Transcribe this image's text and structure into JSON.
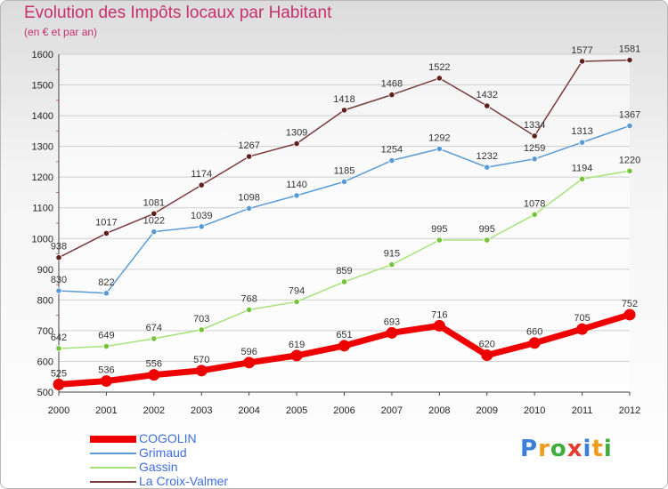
{
  "title": "Evolution des Impôts locaux par Habitant",
  "subtitle": "(en € et par an)",
  "brand": {
    "text": "Proxiti",
    "letters": [
      {
        "ch": "P",
        "color": "#3b7fd9"
      },
      {
        "ch": "r",
        "color": "#f29a1c"
      },
      {
        "ch": "o",
        "color": "#3fae3f"
      },
      {
        "ch": "x",
        "color": "#e23c2c"
      },
      {
        "ch": "i",
        "color": "#3b7fd9"
      },
      {
        "ch": "t",
        "color": "#f29a1c"
      },
      {
        "ch": "i",
        "color": "#3fae3f"
      }
    ]
  },
  "chart_data": {
    "type": "line",
    "title": "Evolution des Impôts locaux par Habitant",
    "subtitle": "(en € et par an)",
    "xlabel": "",
    "ylabel": "",
    "categories": [
      "2000",
      "2001",
      "2002",
      "2003",
      "2004",
      "2005",
      "2006",
      "2007",
      "2008",
      "2009",
      "2010",
      "2011",
      "2012"
    ],
    "ylim": [
      500,
      1600
    ],
    "yticks": [
      500,
      600,
      700,
      800,
      900,
      1000,
      1100,
      1200,
      1300,
      1400,
      1500,
      1600
    ],
    "grid": "horizontal",
    "legend": "bottom-left",
    "series": [
      {
        "name": "COGOLIN",
        "color": "#ee0000",
        "text_color": "#3f6fe0",
        "emphasis": true,
        "values": [
          525,
          536,
          556,
          570,
          596,
          619,
          651,
          693,
          716,
          620,
          660,
          705,
          752
        ]
      },
      {
        "name": "Grimaud",
        "color": "#5b9bd5",
        "text_color": "#3f6fe0",
        "marker": "#5b9bd5",
        "values": [
          830,
          822,
          1022,
          1039,
          1098,
          1140,
          1185,
          1254,
          1292,
          1232,
          1259,
          1313,
          1367
        ]
      },
      {
        "name": "Gassin",
        "color": "#a6e27a",
        "text_color": "#3f6fe0",
        "marker": "#76c23a",
        "values": [
          642,
          649,
          674,
          703,
          768,
          794,
          859,
          915,
          995,
          995,
          1078,
          1194,
          1220
        ]
      },
      {
        "name": "La Croix-Valmer",
        "color": "#7a3b3b",
        "text_color": "#3f6fe0",
        "marker": "#5e1f1f",
        "values": [
          938,
          1017,
          1081,
          1174,
          1267,
          1309,
          1418,
          1468,
          1522,
          1432,
          1334,
          1577,
          1581
        ]
      }
    ]
  }
}
